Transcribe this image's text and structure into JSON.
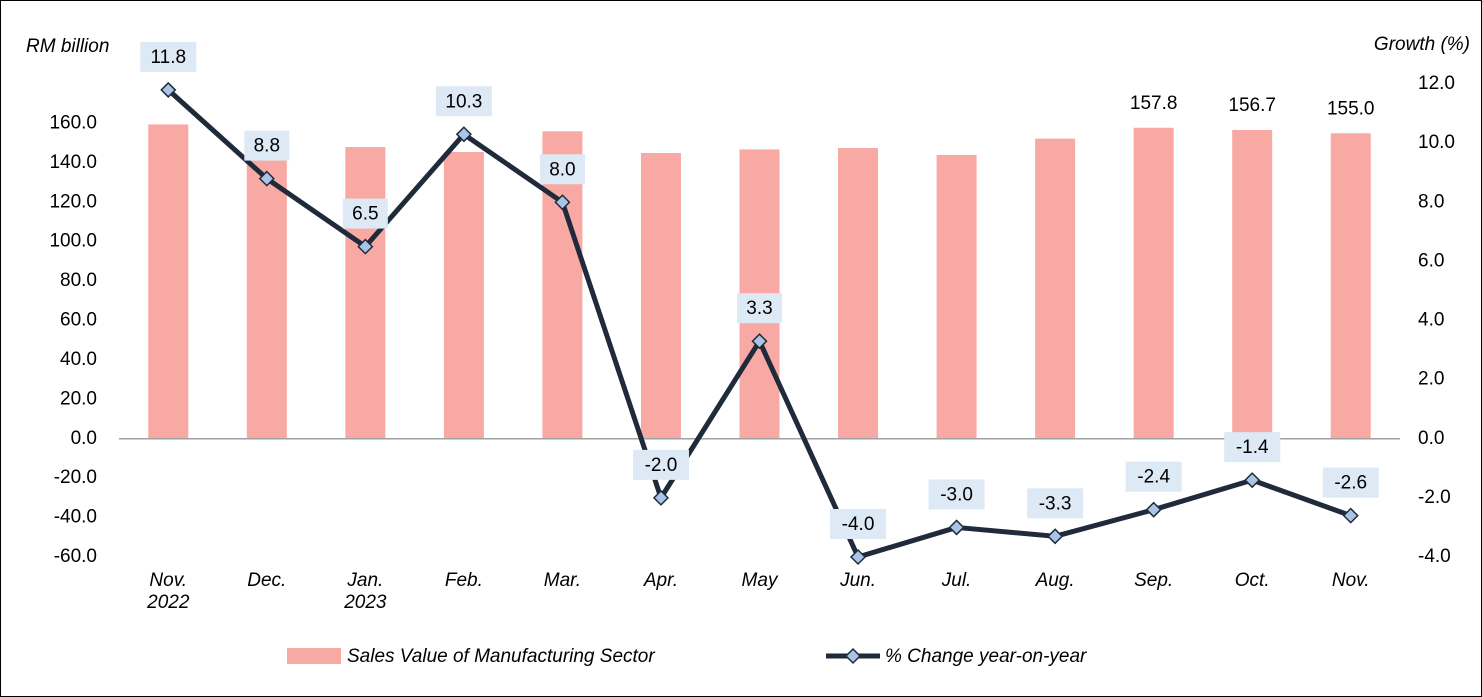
{
  "chart_data": {
    "type": "bar_line",
    "y_label": "RM billion",
    "y2_label": "Growth (%)",
    "categories": [
      "Nov. 2022",
      "Dec.",
      "Jan. 2023",
      "Feb.",
      "Mar.",
      "Apr.",
      "May",
      "Jun.",
      "Jul.",
      "Aug.",
      "Sep.",
      "Oct.",
      "Nov."
    ],
    "series": [
      {
        "name": "Sales Value of Manufacturing Sector",
        "type": "bar",
        "color": "#f9a9a3",
        "values": [
          159.5,
          156.2,
          148.0,
          145.5,
          156.0,
          145.0,
          146.8,
          147.5,
          144.0,
          152.3,
          157.8,
          156.7,
          155.0
        ],
        "value_labels": [
          null,
          null,
          null,
          null,
          null,
          null,
          null,
          null,
          null,
          null,
          "157.8",
          "156.7",
          "155.0"
        ]
      },
      {
        "name": "% Change year-on-year",
        "type": "line",
        "axis": "y2",
        "color": "#1f2a3a",
        "marker_color": "#a9c4e6",
        "values": [
          11.8,
          8.8,
          6.5,
          10.3,
          8.0,
          -2.0,
          3.3,
          -4.0,
          -3.0,
          -3.3,
          -2.4,
          -1.4,
          -2.6
        ],
        "value_labels": [
          "11.8",
          "8.8",
          "6.5",
          "10.3",
          "8.0",
          "-2.0",
          "3.3",
          "-4.0",
          "-3.0",
          "-3.3",
          "-2.4",
          "-1.4",
          "-2.6"
        ]
      }
    ],
    "ylim": [
      -60,
      180
    ],
    "yticks": [
      {
        "value": -60,
        "label": "-60.0"
      },
      {
        "value": -40,
        "label": "-40.0"
      },
      {
        "value": -20,
        "label": "-20.0"
      },
      {
        "value": 0,
        "label": "0.0"
      },
      {
        "value": 20,
        "label": "20.0"
      },
      {
        "value": 40,
        "label": "40.0"
      },
      {
        "value": 60,
        "label": "60.0"
      },
      {
        "value": 80,
        "label": "80.0"
      },
      {
        "value": 100,
        "label": "100.0"
      },
      {
        "value": 120,
        "label": "120.0"
      },
      {
        "value": 140,
        "label": "140.0"
      },
      {
        "value": 160,
        "label": "160.0"
      }
    ],
    "y2lim": [
      -4,
      12
    ],
    "y2ticks": [
      {
        "value": -4,
        "label": "-4.0"
      },
      {
        "value": -2,
        "label": "-2.0"
      },
      {
        "value": 0,
        "label": "0.0"
      },
      {
        "value": 2,
        "label": "2.0"
      },
      {
        "value": 4,
        "label": "4.0"
      },
      {
        "value": 6,
        "label": "6.0"
      },
      {
        "value": 8,
        "label": "8.0"
      },
      {
        "value": 10,
        "label": "10.0"
      },
      {
        "value": 12,
        "label": "12.0"
      }
    ],
    "grid": false,
    "legend": "bottom"
  }
}
